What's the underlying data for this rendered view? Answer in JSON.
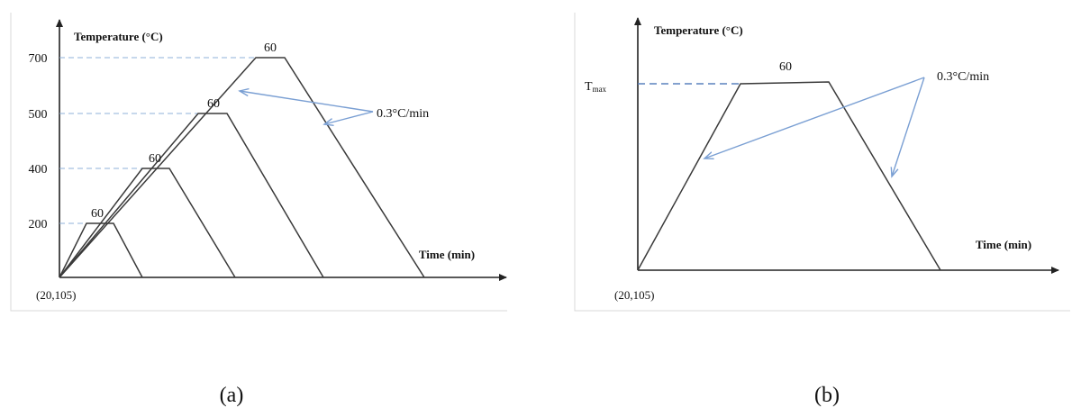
{
  "panel_a": {
    "y_axis_label": "Temperature (°C)",
    "x_axis_label": "Time (min)",
    "origin_label": "(20,105)",
    "y_ticks": [
      "200",
      "400",
      "500",
      "700"
    ],
    "plateaus": [
      {
        "temperature": 200,
        "hold": "60"
      },
      {
        "temperature": 400,
        "hold": "60"
      },
      {
        "temperature": 500,
        "hold": "60"
      },
      {
        "temperature": 700,
        "hold": "60"
      }
    ],
    "rate_label": "0.3°C/min",
    "caption": "(a)"
  },
  "panel_b": {
    "y_axis_label": "Temperature (°C)",
    "x_axis_label": "Time (min)",
    "origin_label": "(20,105)",
    "tmax_main": "T",
    "tmax_sub": "max",
    "hold": "60",
    "rate_label": "0.3°C/min",
    "caption": "(b)"
  },
  "colors": {
    "profile": "#3a3a3a",
    "guides": "#8fb0d8",
    "callout": "#7a9fd3"
  }
}
